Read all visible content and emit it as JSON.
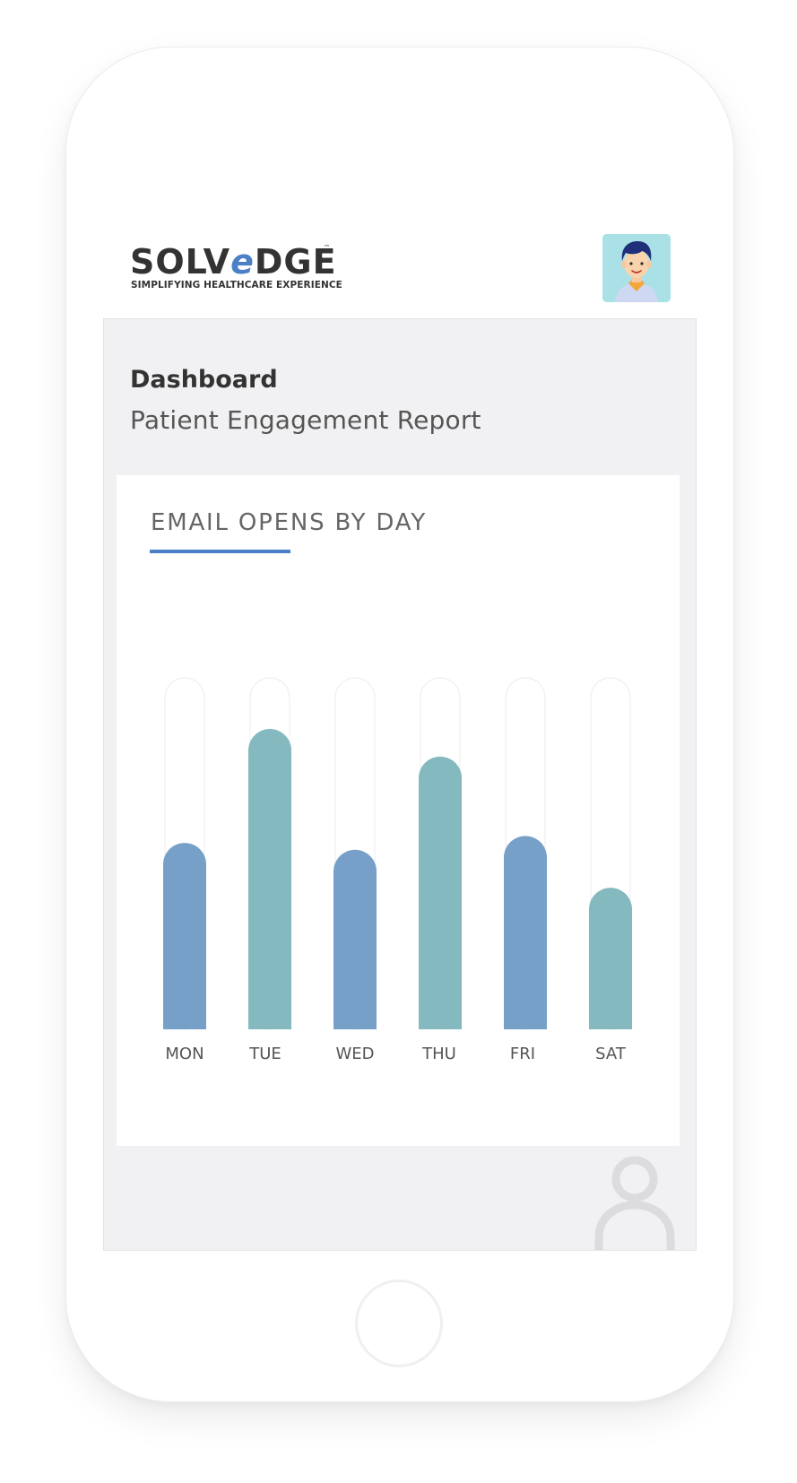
{
  "brand": {
    "name_prefix": "SOLV",
    "name_accent": "e",
    "name_suffix": "DGE",
    "trademark": "™",
    "tagline": "SIMPLIFYING HEALTHCARE EXPERIENCE"
  },
  "header": {
    "title": "Dashboard",
    "subtitle": "Patient Engagement Report"
  },
  "card": {
    "title": "EMAIL OPENS BY DAY"
  },
  "icons": {
    "avatar": "user-avatar-icon",
    "watermark": "person-icon"
  },
  "colors": {
    "accent": "#4b7fc7",
    "bar_blue": "#76a0c8",
    "bar_teal": "#83b9bf",
    "screen_bg": "#f1f1f3",
    "avatar_bg": "#a9e1e6"
  },
  "chart_data": {
    "type": "bar",
    "title": "EMAIL OPENS BY DAY",
    "categories": [
      "MON",
      "TUE",
      "WED",
      "THU",
      "FRI",
      "SAT"
    ],
    "values": [
      54,
      87,
      52,
      79,
      56,
      41
    ],
    "ylim": [
      0,
      100
    ],
    "grid": false,
    "xlabel": "",
    "ylabel": ""
  }
}
